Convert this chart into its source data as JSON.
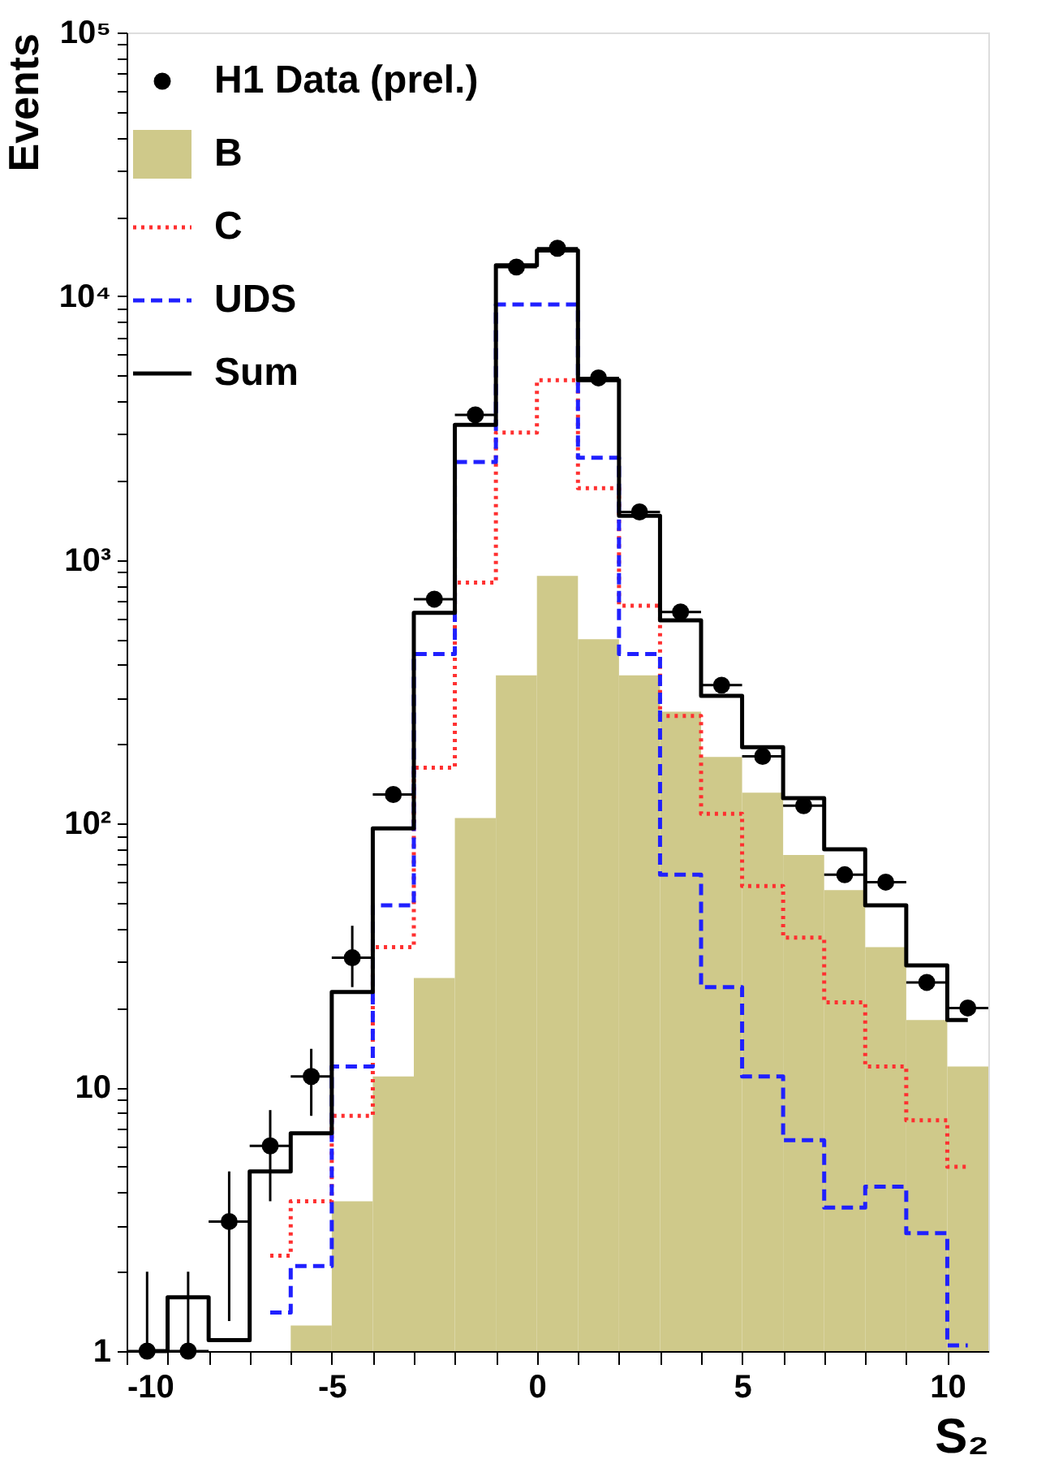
{
  "chart_data": {
    "type": "histogram",
    "xlabel": "S₂",
    "ylabel": "Events",
    "bins": [
      -10,
      -9,
      -8,
      -7,
      -6,
      -5,
      -4,
      -3,
      -2,
      -1,
      0,
      1,
      2,
      3,
      4,
      5,
      6,
      7,
      8,
      9,
      10,
      11
    ],
    "xlim": [
      -10,
      11
    ],
    "xticks": [
      -10,
      {
        "value": -9,
        "label": null
      },
      {
        "value": -8,
        "label": null
      },
      {
        "value": -7,
        "label": null
      },
      {
        "value": -6,
        "label": null
      },
      -5,
      {
        "value": -4,
        "label": null
      },
      {
        "value": -3,
        "label": null
      },
      {
        "value": -2,
        "label": null
      },
      {
        "value": -1,
        "label": null
      },
      0,
      {
        "value": 1,
        "label": null
      },
      {
        "value": 2,
        "label": null
      },
      {
        "value": 3,
        "label": null
      },
      {
        "value": 4,
        "label": null
      },
      5,
      {
        "value": 6,
        "label": null
      },
      {
        "value": 7,
        "label": null
      },
      {
        "value": 8,
        "label": null
      },
      {
        "value": 9,
        "label": null
      },
      10
    ],
    "ylim": [
      1,
      100000
    ],
    "yticks": [
      1,
      {
        "value": 2,
        "label": null
      },
      {
        "value": 3,
        "label": null
      },
      {
        "value": 4,
        "label": null
      },
      {
        "value": 5,
        "label": null
      },
      {
        "value": 6,
        "label": null
      },
      {
        "value": 7,
        "label": null
      },
      {
        "value": 8,
        "label": null
      },
      {
        "value": 9,
        "label": null
      },
      10,
      {
        "value": 20,
        "label": null
      },
      {
        "value": 30,
        "label": null
      },
      {
        "value": 40,
        "label": null
      },
      {
        "value": 50,
        "label": null
      },
      {
        "value": 60,
        "label": null
      },
      {
        "value": 70,
        "label": null
      },
      {
        "value": 80,
        "label": null
      },
      {
        "value": 90,
        "label": null
      },
      {
        "value": 100,
        "label": "10²"
      },
      {
        "value": 200,
        "label": null
      },
      {
        "value": 300,
        "label": null
      },
      {
        "value": 400,
        "label": null
      },
      {
        "value": 500,
        "label": null
      },
      {
        "value": 600,
        "label": null
      },
      {
        "value": 700,
        "label": null
      },
      {
        "value": 800,
        "label": null
      },
      {
        "value": 900,
        "label": null
      },
      {
        "value": 1000,
        "label": "10³"
      },
      {
        "value": 2000,
        "label": null
      },
      {
        "value": 3000,
        "label": null
      },
      {
        "value": 4000,
        "label": null
      },
      {
        "value": 5000,
        "label": null
      },
      {
        "value": 6000,
        "label": null
      },
      {
        "value": 7000,
        "label": null
      },
      {
        "value": 8000,
        "label": null
      },
      {
        "value": 9000,
        "label": null
      },
      {
        "value": 10000,
        "label": "10⁴"
      },
      {
        "value": 20000,
        "label": null
      },
      {
        "value": 30000,
        "label": null
      },
      {
        "value": 40000,
        "label": null
      },
      {
        "value": 50000,
        "label": null
      },
      {
        "value": 60000,
        "label": null
      },
      {
        "value": 70000,
        "label": null
      },
      {
        "value": 80000,
        "label": null
      },
      {
        "value": 90000,
        "label": null
      },
      {
        "value": 100000,
        "label": "10⁵"
      }
    ],
    "log": true,
    "grid": false,
    "legend": "top left",
    "series": [
      {
        "name": "H1 Data (prel.)",
        "type": "scatter",
        "marker": "circle",
        "color": "#000000",
        "x": [
          -9.5,
          -8.5,
          -7.5,
          -6.5,
          -5.5,
          -4.5,
          -3.5,
          -2.5,
          -1.5,
          -0.5,
          0.5,
          1.5,
          2.5,
          3.5,
          4.5,
          5.5,
          6.5,
          7.5,
          8.5,
          9.5,
          10.5
        ],
        "values": [
          1,
          1,
          3.1,
          6,
          11,
          31,
          129,
          710,
          3550,
          12900,
          15200,
          4900,
          1520,
          635,
          335,
          180,
          117,
          64,
          60,
          25,
          20
        ],
        "xerrors": [
          0.5,
          0.5,
          0.5,
          0.5,
          0.5,
          0.5,
          0.5,
          0.5,
          0.5,
          0.5,
          0.5,
          0.5,
          0.5,
          0.5,
          0.5,
          0.5,
          0.5,
          0.5,
          0.5,
          0.5,
          0.5
        ],
        "errors": [
          [
            1,
            2
          ],
          [
            1,
            2
          ],
          [
            1.3,
            4.8
          ],
          [
            3.7,
            8.2
          ],
          [
            7.8,
            14
          ],
          [
            24,
            41
          ],
          null,
          null,
          null,
          null,
          null,
          null,
          null,
          null,
          null,
          null,
          null,
          null,
          null,
          null,
          null
        ]
      },
      {
        "name": "B",
        "type": "histogram",
        "color": "#cfc98a",
        "values": [
          null,
          null,
          null,
          null,
          1.25,
          3.7,
          11,
          26,
          105,
          365,
          870,
          500,
          365,
          266,
          179,
          131,
          76,
          56,
          34,
          18,
          12
        ]
      },
      {
        "name": "C",
        "type": "step",
        "x": [
          -6.5,
          -5.5,
          -4.5,
          -3.5,
          -2.5,
          -1.5,
          -0.5,
          0.5,
          1.5,
          2.5,
          3.5,
          4.5,
          5.5,
          6.5,
          7.5,
          8.5,
          9.5,
          10.5
        ],
        "line_style": "dotted",
        "color": "#ff3030",
        "values": [
          2.3,
          3.7,
          7.8,
          34,
          163,
          820,
          3040,
          4800,
          1870,
          670,
          256,
          109,
          58,
          37,
          21,
          12,
          7.5,
          5
        ]
      },
      {
        "name": "UDS",
        "type": "step",
        "x": [
          -6.5,
          -5.5,
          -4.5,
          -3.5,
          -2.5,
          -1.5,
          -0.5,
          0.5,
          1.5,
          2.5,
          3.5,
          4.5,
          5.5,
          6.5,
          7.5,
          8.5,
          9.5,
          10.5
        ],
        "line_style": "dashed",
        "color": "#2020ff",
        "values": [
          1.4,
          2.1,
          12,
          49,
          440,
          2350,
          9300,
          9300,
          2440,
          440,
          64,
          24,
          11,
          6.3,
          3.5,
          4.2,
          2.8,
          1.05
        ]
      },
      {
        "name": "Sum",
        "type": "step",
        "x": [
          -9.5,
          -8.5,
          -7.5,
          -6.5,
          -5.5,
          -4.5,
          -3.5,
          -2.5,
          -1.5,
          -0.5,
          0.5,
          1.5,
          2.5,
          3.5,
          4.5,
          5.5,
          6.5,
          7.5,
          8.5,
          9.5,
          10.5
        ],
        "line_style": "solid",
        "color": "#000000",
        "values": [
          1,
          1.6,
          1.1,
          4.8,
          6.7,
          23,
          96,
          630,
          3250,
          13100,
          14900,
          4800,
          1470,
          590,
          305,
          195,
          125,
          80,
          49,
          29,
          18
        ]
      }
    ]
  }
}
